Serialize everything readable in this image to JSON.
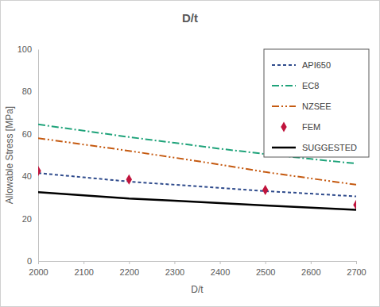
{
  "chart_data": {
    "type": "line",
    "title": "D/t",
    "x_label": "D/t",
    "y_label": "Allowable Stress [MPa]",
    "x": [
      2000,
      2100,
      2200,
      2300,
      2400,
      2500,
      2600,
      2700
    ],
    "series": [
      {
        "name": "API650",
        "type": "line",
        "color": "#2f4b8c",
        "line_style": "dashed",
        "values": [
          41.5,
          39.5,
          37.5,
          36,
          34.5,
          33,
          31.8,
          30.5
        ]
      },
      {
        "name": "EC8",
        "type": "line",
        "color": "#1fa37a",
        "line_style": "dash-dot",
        "values": [
          64.5,
          61.5,
          58.5,
          55.8,
          53,
          50.5,
          48.2,
          46
        ]
      },
      {
        "name": "NZSEE",
        "type": "line",
        "color": "#c55a11",
        "line_style": "dash-dot-dot",
        "values": [
          58,
          55,
          52,
          48.8,
          45.5,
          42,
          39,
          36
        ]
      },
      {
        "name": "FEM",
        "type": "scatter",
        "color": "#c0143c",
        "marker": "diamond",
        "values": [
          42.5,
          null,
          38.5,
          null,
          null,
          33.5,
          null,
          26.5
        ]
      },
      {
        "name": "SUGGESTED",
        "type": "line",
        "color": "#000000",
        "line_style": "solid",
        "values": [
          32.5,
          31,
          29.5,
          28.5,
          27.3,
          26.2,
          25.2,
          24.2
        ]
      }
    ],
    "xlim": [
      2000,
      2700
    ],
    "xticks": [
      2000,
      2100,
      2200,
      2300,
      2400,
      2500,
      2600,
      2700
    ],
    "ylim": [
      0,
      100
    ],
    "yticks": [
      0,
      20,
      40,
      60,
      80,
      100
    ],
    "grid": false,
    "legend": "top-right"
  }
}
